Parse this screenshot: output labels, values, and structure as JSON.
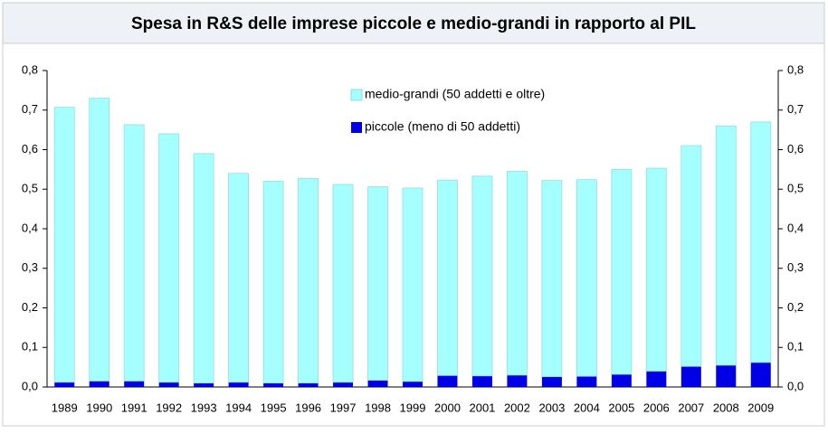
{
  "chart_data": {
    "type": "stacked-bar",
    "title": "Spesa in R&S delle imprese piccole e medio-grandi in rapporto al PIL",
    "categories": [
      "1989",
      "1990",
      "1991",
      "1992",
      "1993",
      "1994",
      "1995",
      "1996",
      "1997",
      "1998",
      "1999",
      "2000",
      "2001",
      "2002",
      "2003",
      "2004",
      "2005",
      "2006",
      "2007",
      "2008",
      "2009"
    ],
    "series": [
      {
        "name": "piccole (meno di 50 addetti)",
        "color": "#0000e6",
        "values": [
          0.012,
          0.015,
          0.015,
          0.012,
          0.01,
          0.012,
          0.01,
          0.01,
          0.012,
          0.017,
          0.014,
          0.029,
          0.028,
          0.03,
          0.026,
          0.027,
          0.032,
          0.04,
          0.052,
          0.055,
          0.062
        ]
      },
      {
        "name": "medio-grandi (50 addetti e oltre)",
        "color": "#a6ffff",
        "values": [
          0.695,
          0.715,
          0.648,
          0.628,
          0.58,
          0.528,
          0.51,
          0.517,
          0.5,
          0.489,
          0.489,
          0.494,
          0.505,
          0.515,
          0.496,
          0.497,
          0.518,
          0.513,
          0.558,
          0.605,
          0.608
        ]
      }
    ],
    "ylim": [
      0,
      0.8
    ],
    "yticks": [
      {
        "value": 0,
        "label": "0,0"
      },
      {
        "value": 0.1,
        "label": "0,1"
      },
      {
        "value": 0.2,
        "label": "0,2"
      },
      {
        "value": 0.3,
        "label": "0,3"
      },
      {
        "value": 0.4,
        "label": "0,4"
      },
      {
        "value": 0.5,
        "label": "0,5"
      },
      {
        "value": 0.6,
        "label": "0,6"
      },
      {
        "value": 0.7,
        "label": "0,7"
      },
      {
        "value": 0.8,
        "label": "0,8"
      }
    ],
    "y2lim": [
      0,
      0.8
    ],
    "y2ticks": [
      {
        "value": 0,
        "label": "0,0"
      },
      {
        "value": 0.1,
        "label": "0,1"
      },
      {
        "value": 0.2,
        "label": "0,2"
      },
      {
        "value": 0.3,
        "label": "0,3"
      },
      {
        "value": 0.4,
        "label": "0,4"
      },
      {
        "value": 0.5,
        "label": "0,5"
      },
      {
        "value": 0.6,
        "label": "0,6"
      },
      {
        "value": 0.7,
        "label": "0,7"
      },
      {
        "value": 0.8,
        "label": "0,8"
      }
    ]
  }
}
